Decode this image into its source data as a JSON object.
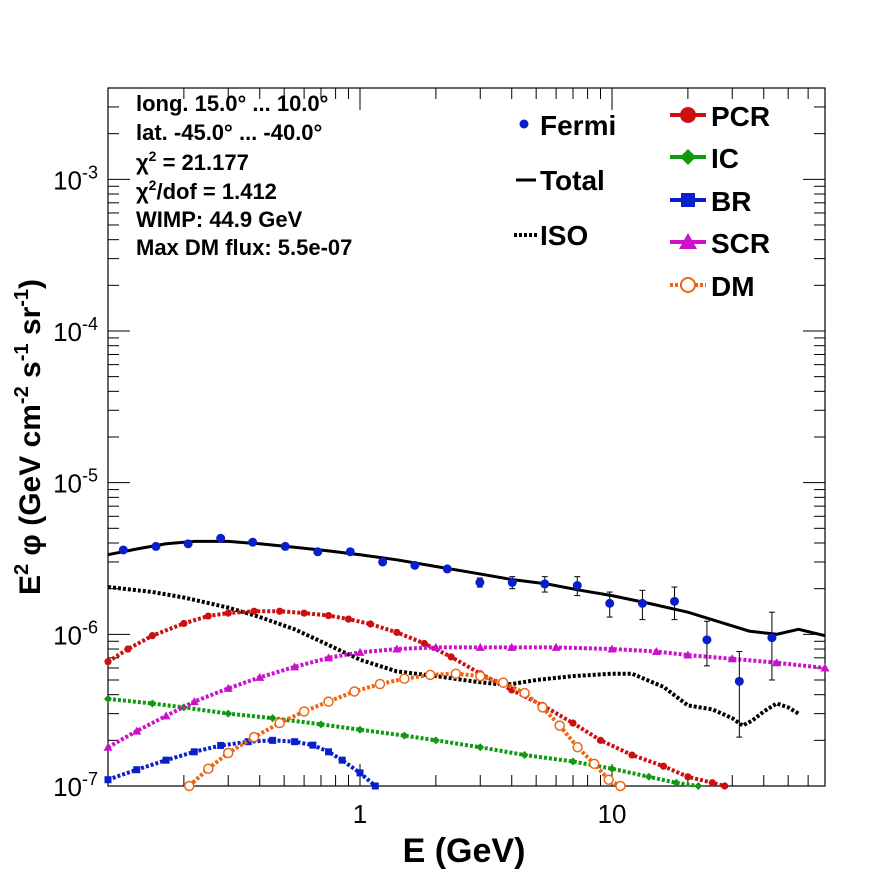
{
  "chart_data": {
    "type": "line",
    "xscale": "log",
    "yscale": "log",
    "xlabel": "E (GeV)",
    "ylabel": "E² φ (GeV cm⁻² s⁻¹ sr⁻¹)",
    "ylabel_parts": {
      "pre": "E",
      "sup1": "2",
      "mid": " φ (GeV cm",
      "sup2": "-2",
      "mid2": " s",
      "sup3": "-1",
      "mid3": " sr",
      "sup4": "-1",
      "post": ")"
    },
    "xlim": [
      0.1,
      70
    ],
    "ylim": [
      1e-07,
      0.004
    ],
    "x_tick_labels": [
      {
        "v": 1,
        "t": "1"
      },
      {
        "v": 10,
        "t": "10"
      }
    ],
    "y_tick_labels": [
      {
        "v": 1e-07,
        "base": "10",
        "exp": "-7"
      },
      {
        "v": 1e-06,
        "base": "10",
        "exp": "-6"
      },
      {
        "v": 1e-05,
        "base": "10",
        "exp": "-5"
      },
      {
        "v": 0.0001,
        "base": "10",
        "exp": "-4"
      },
      {
        "v": 0.001,
        "base": "10",
        "exp": "-3"
      }
    ],
    "info_lines": [
      {
        "text": "long. 15.0° ... 10.0°"
      },
      {
        "text": "lat. -45.0° ... -40.0°"
      },
      {
        "sym": "χ",
        "sup": "2",
        "text": " = 21.177"
      },
      {
        "sym": "χ",
        "sup": "2",
        "text": "/dof = 1.412"
      },
      {
        "text": "WIMP: 44.9 GeV"
      },
      {
        "text": "Max DM flux: 5.5e-07"
      }
    ],
    "legend_left": [
      {
        "key": "fermi",
        "label": "Fermi"
      },
      {
        "key": "total",
        "label": "Total"
      },
      {
        "key": "iso",
        "label": "ISO"
      }
    ],
    "legend_right": [
      {
        "key": "pcr",
        "label": "PCR"
      },
      {
        "key": "ic",
        "label": "IC"
      },
      {
        "key": "br",
        "label": "BR"
      },
      {
        "key": "scr",
        "label": "SCR"
      },
      {
        "key": "dm",
        "label": "DM"
      }
    ],
    "colors": {
      "fermi": "#0a1fcc",
      "total": "#000000",
      "iso": "#000000",
      "pcr": "#cc1010",
      "ic": "#119911",
      "br": "#0a1fcc",
      "scr": "#cc11cc",
      "dm": "#ee6611"
    },
    "fermi_points": [
      {
        "x": 0.115,
        "y": 3.6e-06,
        "err": 0
      },
      {
        "x": 0.155,
        "y": 3.8e-06,
        "err": 0
      },
      {
        "x": 0.208,
        "y": 3.95e-06,
        "err": 0
      },
      {
        "x": 0.28,
        "y": 4.3e-06,
        "err": 0
      },
      {
        "x": 0.375,
        "y": 4.05e-06,
        "err": 0
      },
      {
        "x": 0.505,
        "y": 3.8e-06,
        "err": 0
      },
      {
        "x": 0.68,
        "y": 3.5e-06,
        "err": 0
      },
      {
        "x": 0.915,
        "y": 3.5e-06,
        "err": 0
      },
      {
        "x": 1.23,
        "y": 3e-06,
        "err": 0
      },
      {
        "x": 1.65,
        "y": 2.85e-06,
        "err": 0
      },
      {
        "x": 2.22,
        "y": 2.7e-06,
        "err": 0
      },
      {
        "x": 2.99,
        "y": 2.2e-06,
        "err": 1.5e-07
      },
      {
        "x": 4.02,
        "y": 2.2e-06,
        "err": 2e-07
      },
      {
        "x": 5.41,
        "y": 2.15e-06,
        "err": 2.5e-07
      },
      {
        "x": 7.28,
        "y": 2.1e-06,
        "err": 3e-07
      },
      {
        "x": 9.79,
        "y": 1.6e-06,
        "err": 3e-07
      },
      {
        "x": 13.2,
        "y": 1.6e-06,
        "err": 3.5e-07
      },
      {
        "x": 17.7,
        "y": 1.65e-06,
        "err": 4e-07
      },
      {
        "x": 23.8,
        "y": 9.2e-07,
        "err": 3e-07
      },
      {
        "x": 32.0,
        "y": 4.9e-07,
        "err": 2.8e-07
      },
      {
        "x": 43.1,
        "y": 9.5e-07,
        "err": 4.5e-07
      }
    ],
    "series": [
      {
        "key": "total",
        "name": "Total",
        "style": "solid",
        "x": [
          0.1,
          0.13,
          0.17,
          0.22,
          0.3,
          0.4,
          0.55,
          0.75,
          1.0,
          1.4,
          2.0,
          2.8,
          4.0,
          5.5,
          7.5,
          10,
          14,
          20,
          27,
          35,
          45,
          55,
          70
        ],
        "y": [
          3.35e-06,
          3.65e-06,
          3.95e-06,
          4.1e-06,
          4.1e-06,
          3.95e-06,
          3.75e-06,
          3.55e-06,
          3.35e-06,
          3.1e-06,
          2.8e-06,
          2.55e-06,
          2.3e-06,
          2.15e-06,
          1.95e-06,
          1.8e-06,
          1.6e-06,
          1.4e-06,
          1.2e-06,
          1.05e-06,
          1e-06,
          1.08e-06,
          9.8e-07
        ]
      },
      {
        "key": "iso",
        "name": "ISO",
        "style": "dotted",
        "x": [
          0.1,
          0.15,
          0.2,
          0.3,
          0.4,
          0.55,
          0.75,
          1.0,
          1.4,
          2.0,
          2.8,
          3.5,
          4.0,
          5.0,
          7.0,
          10,
          12,
          16,
          20,
          25,
          30,
          33,
          36,
          40,
          45,
          50,
          55
        ],
        "y": [
          2.05e-06,
          1.9e-06,
          1.75e-06,
          1.5e-06,
          1.3e-06,
          1.08e-06,
          8.5e-07,
          6.8e-07,
          5.7e-07,
          5.3e-07,
          4.9e-07,
          4.7e-07,
          4.7e-07,
          5e-07,
          5.3e-07,
          5.5e-07,
          5.5e-07,
          4.5e-07,
          3.4e-07,
          3.2e-07,
          2.8e-07,
          2.5e-07,
          2.7e-07,
          3.1e-07,
          3.5e-07,
          3.3e-07,
          3e-07
        ]
      },
      {
        "key": "pcr",
        "name": "PCR",
        "style": "marker",
        "marker": "circle",
        "x": [
          0.1,
          0.12,
          0.15,
          0.2,
          0.25,
          0.3,
          0.38,
          0.48,
          0.6,
          0.75,
          0.9,
          1.1,
          1.4,
          1.8,
          2.3,
          3.0,
          4.0,
          5.3,
          7.0,
          9.0,
          12,
          16,
          20,
          25,
          28
        ],
        "y": [
          6.6e-07,
          8e-07,
          9.8e-07,
          1.18e-06,
          1.32e-06,
          1.38e-06,
          1.42e-06,
          1.42e-06,
          1.38e-06,
          1.33e-06,
          1.26e-06,
          1.17e-06,
          1.03e-06,
          8.7e-07,
          7.1e-07,
          5.5e-07,
          4.3e-07,
          3.4e-07,
          2.6e-07,
          2e-07,
          1.6e-07,
          1.35e-07,
          1.15e-07,
          1.05e-07,
          1e-07
        ]
      },
      {
        "key": "ic",
        "name": "IC",
        "style": "marker",
        "marker": "diamond",
        "x": [
          0.1,
          0.15,
          0.2,
          0.3,
          0.45,
          0.7,
          1.0,
          1.5,
          2.0,
          3.0,
          4.5,
          7.0,
          10,
          14,
          18,
          22
        ],
        "y": [
          3.75e-07,
          3.5e-07,
          3.3e-07,
          3e-07,
          2.8e-07,
          2.55e-07,
          2.35e-07,
          2.15e-07,
          2e-07,
          1.8e-07,
          1.6e-07,
          1.45e-07,
          1.3e-07,
          1.15e-07,
          1.05e-07,
          1e-07
        ]
      },
      {
        "key": "br",
        "name": "BR",
        "style": "marker",
        "marker": "square",
        "x": [
          0.1,
          0.13,
          0.17,
          0.22,
          0.28,
          0.36,
          0.45,
          0.55,
          0.65,
          0.75,
          0.85,
          1.0,
          1.15
        ],
        "y": [
          1.1e-07,
          1.28e-07,
          1.48e-07,
          1.68e-07,
          1.85e-07,
          1.96e-07,
          2e-07,
          1.96e-07,
          1.86e-07,
          1.68e-07,
          1.48e-07,
          1.22e-07,
          1e-07
        ]
      },
      {
        "key": "scr",
        "name": "SCR",
        "style": "marker",
        "marker": "triangle",
        "x": [
          0.1,
          0.13,
          0.17,
          0.22,
          0.3,
          0.4,
          0.55,
          0.75,
          1.0,
          1.4,
          2.0,
          3.0,
          4.0,
          6.0,
          10,
          15,
          20,
          30,
          45,
          70
        ],
        "y": [
          1.8e-07,
          2.3e-07,
          2.9e-07,
          3.6e-07,
          4.4e-07,
          5.2e-07,
          6.1e-07,
          7e-07,
          7.6e-07,
          8e-07,
          8.2e-07,
          8.2e-07,
          8.2e-07,
          8.2e-07,
          8e-07,
          7.7e-07,
          7.3e-07,
          6.9e-07,
          6.5e-07,
          6e-07
        ]
      },
      {
        "key": "dm",
        "name": "DM",
        "style": "marker",
        "marker": "ocircle",
        "x": [
          0.21,
          0.25,
          0.3,
          0.38,
          0.48,
          0.6,
          0.75,
          0.95,
          1.2,
          1.5,
          1.9,
          2.4,
          3.0,
          3.7,
          4.5,
          5.3,
          6.2,
          7.3,
          8.5,
          9.7,
          10.8
        ],
        "y": [
          1e-07,
          1.3e-07,
          1.65e-07,
          2.1e-07,
          2.6e-07,
          3.1e-07,
          3.6e-07,
          4.2e-07,
          4.7e-07,
          5.1e-07,
          5.4e-07,
          5.5e-07,
          5.3e-07,
          4.8e-07,
          4.1e-07,
          3.3e-07,
          2.5e-07,
          1.8e-07,
          1.4e-07,
          1.1e-07,
          1e-07
        ]
      }
    ]
  }
}
